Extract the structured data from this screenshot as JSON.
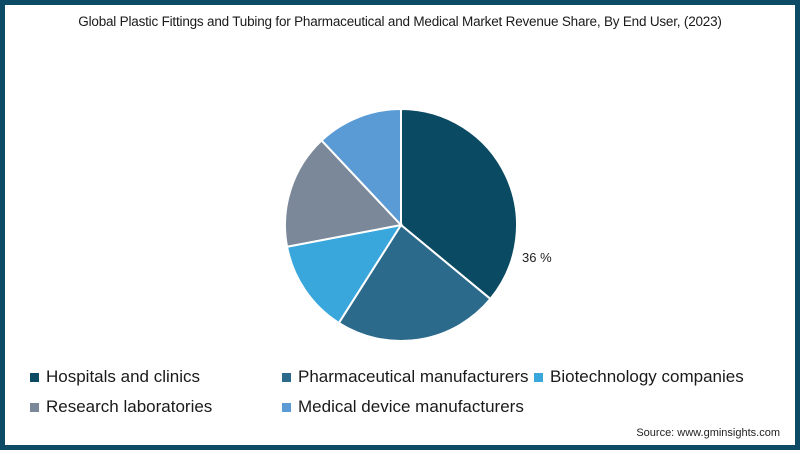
{
  "chart_data": {
    "type": "pie",
    "title": "Global Plastic Fittings and Tubing for Pharmaceutical and Medical Market Revenue Share, By End User, (2023)",
    "categories": [
      "Hospitals and clinics",
      "Pharmaceutical manufacturers",
      "Biotechnology companies",
      "Research laboratories",
      "Medical device manufacturers"
    ],
    "values": [
      36,
      23,
      13,
      16,
      12
    ],
    "colors": [
      "#0b4a63",
      "#2c6a8c",
      "#3aa7dc",
      "#7a8899",
      "#5a9bd5"
    ],
    "data_labels": [
      "36 %",
      "",
      "",
      "",
      ""
    ],
    "legend_position": "bottom",
    "source": "Source: www.gminsights.com"
  },
  "title": "Global Plastic Fittings and Tubing for Pharmaceutical and Medical Market Revenue Share, By End User, (2023)",
  "label_hospitals": "36 %",
  "legend": [
    {
      "label": "Hospitals and clinics",
      "color": "#0b4a63"
    },
    {
      "label": "Pharmaceutical manufacturers",
      "color": "#2c6a8c"
    },
    {
      "label": "Biotechnology companies",
      "color": "#3aa7dc"
    },
    {
      "label": "Research laboratories",
      "color": "#7a8899"
    },
    {
      "label": "Medical device manufacturers",
      "color": "#5a9bd5"
    }
  ],
  "source": "Source: www.gminsights.com"
}
